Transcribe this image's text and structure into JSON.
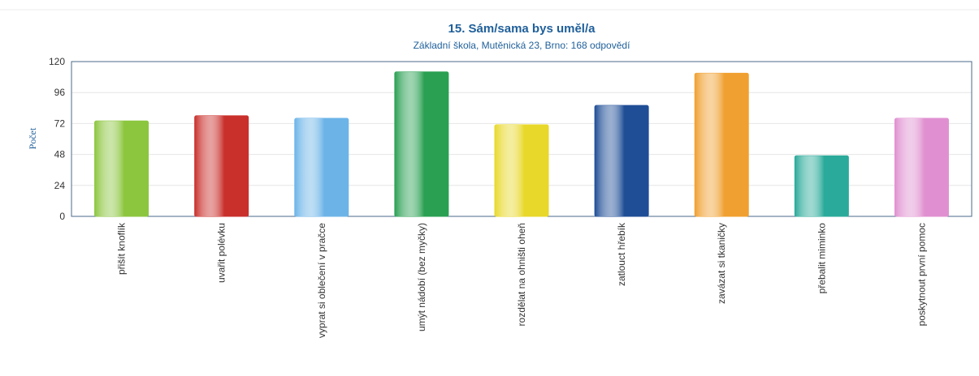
{
  "chart_data": {
    "type": "bar",
    "title": "15. Sám/sama bys uměl/a",
    "subtitle": "Základní škola, Mutěnická 23, Brno: 168 odpovědí",
    "y_label": "Počet",
    "categories": [
      "přišít knoflík",
      "uvařit polévku",
      "vyprat si oblečení v pračce",
      "umýt nádobí (bez myčky)",
      "rozdělat na ohništi oheň",
      "zatlouct hřebík",
      "zavázat si tkaničky",
      "přebalit miminko",
      "poskytnout první pomoc"
    ],
    "values": [
      74,
      78,
      76,
      112,
      71,
      86,
      111,
      47,
      76
    ],
    "colors": [
      "#8cc63f",
      "#c9302c",
      "#6cb4e8",
      "#2aa052",
      "#e8d82a",
      "#1f4e96",
      "#f0a030",
      "#2aaa9a",
      "#e090d0"
    ],
    "ylim": [
      0,
      120
    ],
    "yticks": [
      0,
      24,
      48,
      72,
      96,
      120
    ],
    "grid": true
  }
}
